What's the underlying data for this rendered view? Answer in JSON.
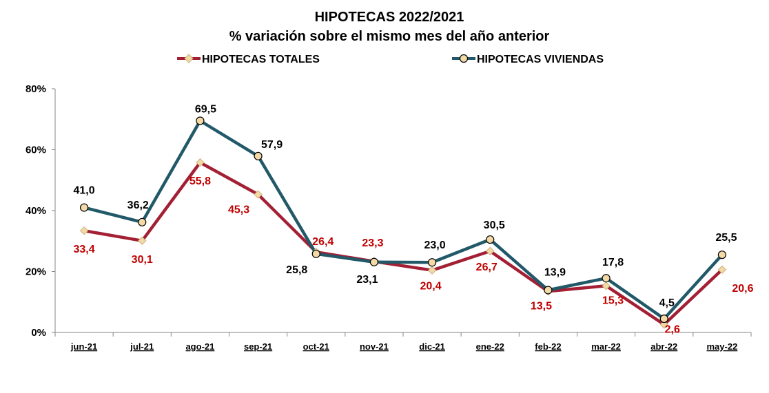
{
  "chart_data": {
    "type": "line",
    "title": "HIPOTECAS 2022/2021",
    "subtitle": "% variación sobre el mismo mes del año anterior",
    "categories": [
      "jun-21",
      "jul-21",
      "ago-21",
      "sep-21",
      "oct-21",
      "nov-21",
      "dic-21",
      "ene-22",
      "feb-22",
      "mar-22",
      "abr-22",
      "may-22"
    ],
    "series": [
      {
        "name": "HIPOTECAS TOTALES",
        "color": "#A31F34",
        "marker_color": "#F2D9A6",
        "marker": "diamond",
        "values": [
          33.4,
          30.1,
          55.8,
          45.3,
          26.4,
          23.3,
          20.4,
          26.7,
          13.5,
          15.3,
          2.6,
          20.6
        ],
        "labels": [
          "33,4",
          "30,1",
          "55,8",
          "45,3",
          "26,4",
          "23,3",
          "20,4",
          "26,7",
          "13,5",
          "15,3",
          "2,6",
          "20,6"
        ]
      },
      {
        "name": "HIPOTECAS VIVIENDAS",
        "color": "#215968",
        "marker_color": "#F2D9A6",
        "marker": "circle",
        "values": [
          41.0,
          36.2,
          69.5,
          57.9,
          25.8,
          23.1,
          23.0,
          30.5,
          13.9,
          17.8,
          4.5,
          25.5
        ],
        "labels": [
          "41,0",
          "36,2",
          "69,5",
          "57,9",
          "25,8",
          "23,1",
          "23,0",
          "30,5",
          "13,9",
          "17,8",
          "4,5",
          "25,5"
        ]
      }
    ],
    "yticks": [
      "0%",
      "20%",
      "40%",
      "60%",
      "80%"
    ],
    "ylim": [
      0,
      80
    ],
    "grid": false,
    "legend_position": "top"
  }
}
